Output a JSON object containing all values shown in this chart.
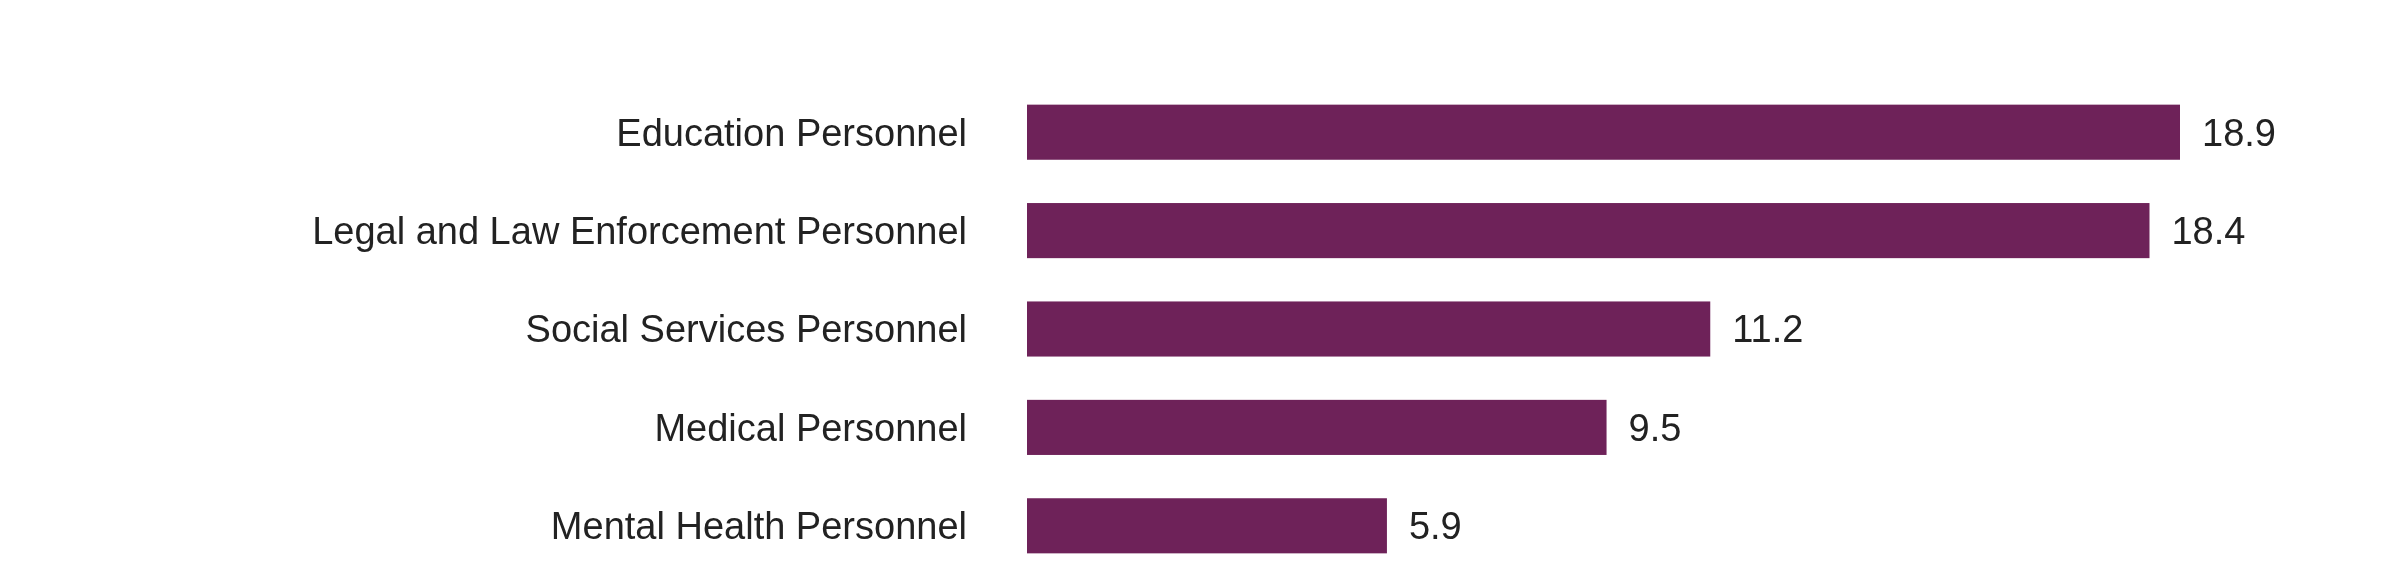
{
  "chart_data": {
    "type": "bar",
    "orientation": "horizontal",
    "categories": [
      "Education Personnel",
      "Legal and Law Enforcement Personnel",
      "Social Services Personnel",
      "Medical Personnel",
      "Mental Health Personnel"
    ],
    "values": [
      18.9,
      18.4,
      11.2,
      9.5,
      5.9
    ],
    "color": "#6e2259",
    "data_labels": true
  }
}
